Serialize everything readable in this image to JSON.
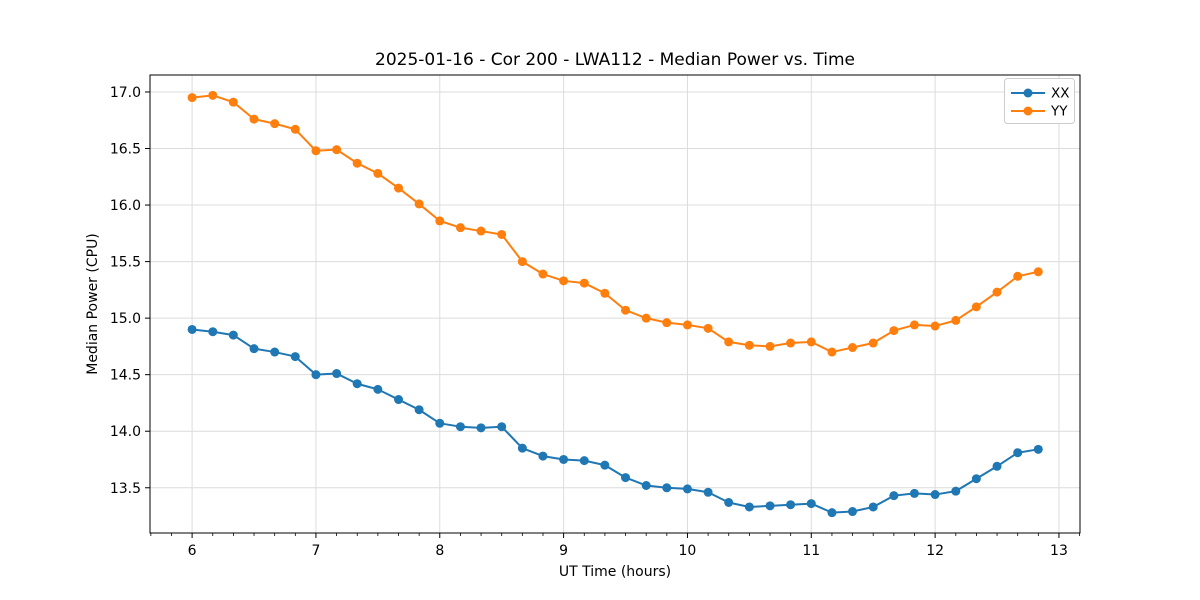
{
  "chart_data": {
    "type": "line",
    "title": "2025-01-16 - Cor 200 - LWA112 - Median Power vs. Time",
    "xlabel": "UT Time (hours)",
    "ylabel": "Median Power (CPU)",
    "xlim": [
      5.66,
      13.17
    ],
    "ylim": [
      13.1,
      17.15
    ],
    "xticks": [
      6,
      7,
      8,
      9,
      10,
      11,
      12,
      13
    ],
    "yticks": [
      13.5,
      14.0,
      14.5,
      15.0,
      15.5,
      16.0,
      16.5,
      17.0
    ],
    "x_minor_tick_step": 0.16667,
    "grid": true,
    "grid_color": "#dcdcdc",
    "background_color": "#ffffff",
    "legend": {
      "position": "upper right",
      "entries": [
        "XX",
        "YY"
      ]
    },
    "x": [
      6.0,
      6.167,
      6.333,
      6.5,
      6.667,
      6.833,
      7.0,
      7.167,
      7.333,
      7.5,
      7.667,
      7.833,
      8.0,
      8.167,
      8.333,
      8.5,
      8.667,
      8.833,
      9.0,
      9.167,
      9.333,
      9.5,
      9.667,
      9.833,
      10.0,
      10.167,
      10.333,
      10.5,
      10.667,
      10.833,
      11.0,
      11.167,
      11.333,
      11.5,
      11.667,
      11.833,
      12.0,
      12.167,
      12.333,
      12.5,
      12.667,
      12.833
    ],
    "series": [
      {
        "name": "XX",
        "color": "#1f77b4",
        "values": [
          14.9,
          14.88,
          14.85,
          14.73,
          14.7,
          14.66,
          14.5,
          14.51,
          14.42,
          14.37,
          14.28,
          14.19,
          14.07,
          14.04,
          14.03,
          14.04,
          13.85,
          13.78,
          13.75,
          13.74,
          13.7,
          13.59,
          13.52,
          13.5,
          13.49,
          13.46,
          13.37,
          13.33,
          13.34,
          13.35,
          13.36,
          13.28,
          13.29,
          13.33,
          13.43,
          13.45,
          13.44,
          13.47,
          13.58,
          13.69,
          13.81,
          13.84
        ]
      },
      {
        "name": "YY",
        "color": "#ff7f0e",
        "values": [
          16.95,
          16.97,
          16.91,
          16.76,
          16.72,
          16.67,
          16.48,
          16.49,
          16.37,
          16.28,
          16.15,
          16.01,
          15.86,
          15.8,
          15.77,
          15.74,
          15.5,
          15.39,
          15.33,
          15.31,
          15.22,
          15.07,
          15.0,
          14.96,
          14.94,
          14.91,
          14.79,
          14.76,
          14.75,
          14.78,
          14.79,
          14.7,
          14.74,
          14.78,
          14.89,
          14.94,
          14.93,
          14.98,
          15.1,
          15.23,
          15.37,
          15.41
        ]
      }
    ]
  }
}
